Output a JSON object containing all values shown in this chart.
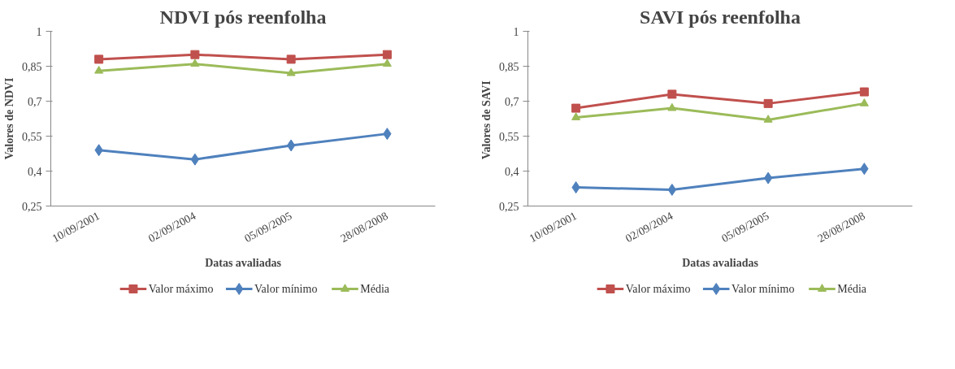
{
  "chart_data": [
    {
      "type": "line",
      "title": "NDVI pós reenfolha",
      "xlabel": "Datas avaliadas",
      "ylabel": "Valores de NDVI",
      "categories": [
        "10/09/2001",
        "02/09/2004",
        "05/09/2005",
        "28/08/2008"
      ],
      "ylim": [
        0.25,
        1
      ],
      "yticks": [
        {
          "value": 0.25,
          "label": "0,25"
        },
        {
          "value": 0.4,
          "label": "0,4"
        },
        {
          "value": 0.55,
          "label": "0,55"
        },
        {
          "value": 0.7,
          "label": "0,7"
        },
        {
          "value": 0.85,
          "label": "0,85"
        },
        1
      ],
      "grid": false,
      "legend": "bottom",
      "line_style": "solid",
      "series": [
        {
          "name": "Valor máximo",
          "color": "#c0504d",
          "marker": "square",
          "values": [
            0.88,
            0.9,
            0.88,
            0.9
          ]
        },
        {
          "name": "Valor mínimo",
          "color": "#4f81bd",
          "marker": "diamond",
          "values": [
            0.49,
            0.45,
            0.51,
            0.56
          ]
        },
        {
          "name": "Média",
          "color": "#9bbb59",
          "marker": "triangle",
          "values": [
            0.83,
            0.86,
            0.82,
            0.86
          ]
        }
      ]
    },
    {
      "type": "line",
      "title": "SAVI pós reenfolha",
      "xlabel": "Datas avaliadas",
      "ylabel": "Valores de  SAVI",
      "categories": [
        "10/09/2001",
        "02/09/2004",
        "05/09/2005",
        "28/08/2008"
      ],
      "ylim": [
        0.25,
        1
      ],
      "yticks": [
        {
          "value": 0.25,
          "label": "0,25"
        },
        {
          "value": 0.4,
          "label": "0,4"
        },
        {
          "value": 0.55,
          "label": "0,55"
        },
        {
          "value": 0.7,
          "label": "0,7"
        },
        {
          "value": 0.85,
          "label": "0,85"
        },
        1
      ],
      "grid": false,
      "legend": "bottom",
      "line_style": "solid",
      "series": [
        {
          "name": "Valor máximo",
          "color": "#c0504d",
          "marker": "square",
          "values": [
            0.67,
            0.73,
            0.69,
            0.74
          ]
        },
        {
          "name": "Valor mínimo",
          "color": "#4f81bd",
          "marker": "diamond",
          "values": [
            0.33,
            0.32,
            0.37,
            0.41
          ]
        },
        {
          "name": "Média",
          "color": "#9bbb59",
          "marker": "triangle",
          "values": [
            0.63,
            0.67,
            0.62,
            0.69
          ]
        }
      ]
    }
  ]
}
